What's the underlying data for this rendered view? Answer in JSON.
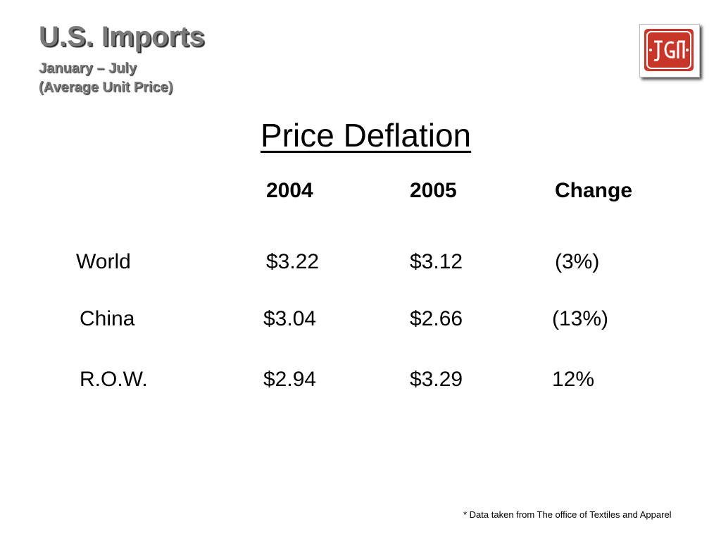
{
  "header": {
    "title": "U.S. Imports",
    "subtitle_line1": "January – July",
    "subtitle_line2": "(Average Unit Price)"
  },
  "logo": {
    "icon": "company-monogram-logo-icon",
    "color": "#c8362a"
  },
  "slide_title": "Price Deflation",
  "table": {
    "columns": [
      "2004",
      "2005",
      "Change"
    ],
    "rows": [
      {
        "label": "World",
        "v2004": "$3.22",
        "v2005": "$3.12",
        "change": "(3%)"
      },
      {
        "label": "China",
        "v2004": "$3.04",
        "v2005": "$2.66",
        "change": "(13%)"
      },
      {
        "label": "R.O.W.",
        "v2004": "$2.94",
        "v2005": "$3.29",
        "change": "12%"
      }
    ]
  },
  "footnote": "* Data taken from The office of Textiles and Apparel"
}
